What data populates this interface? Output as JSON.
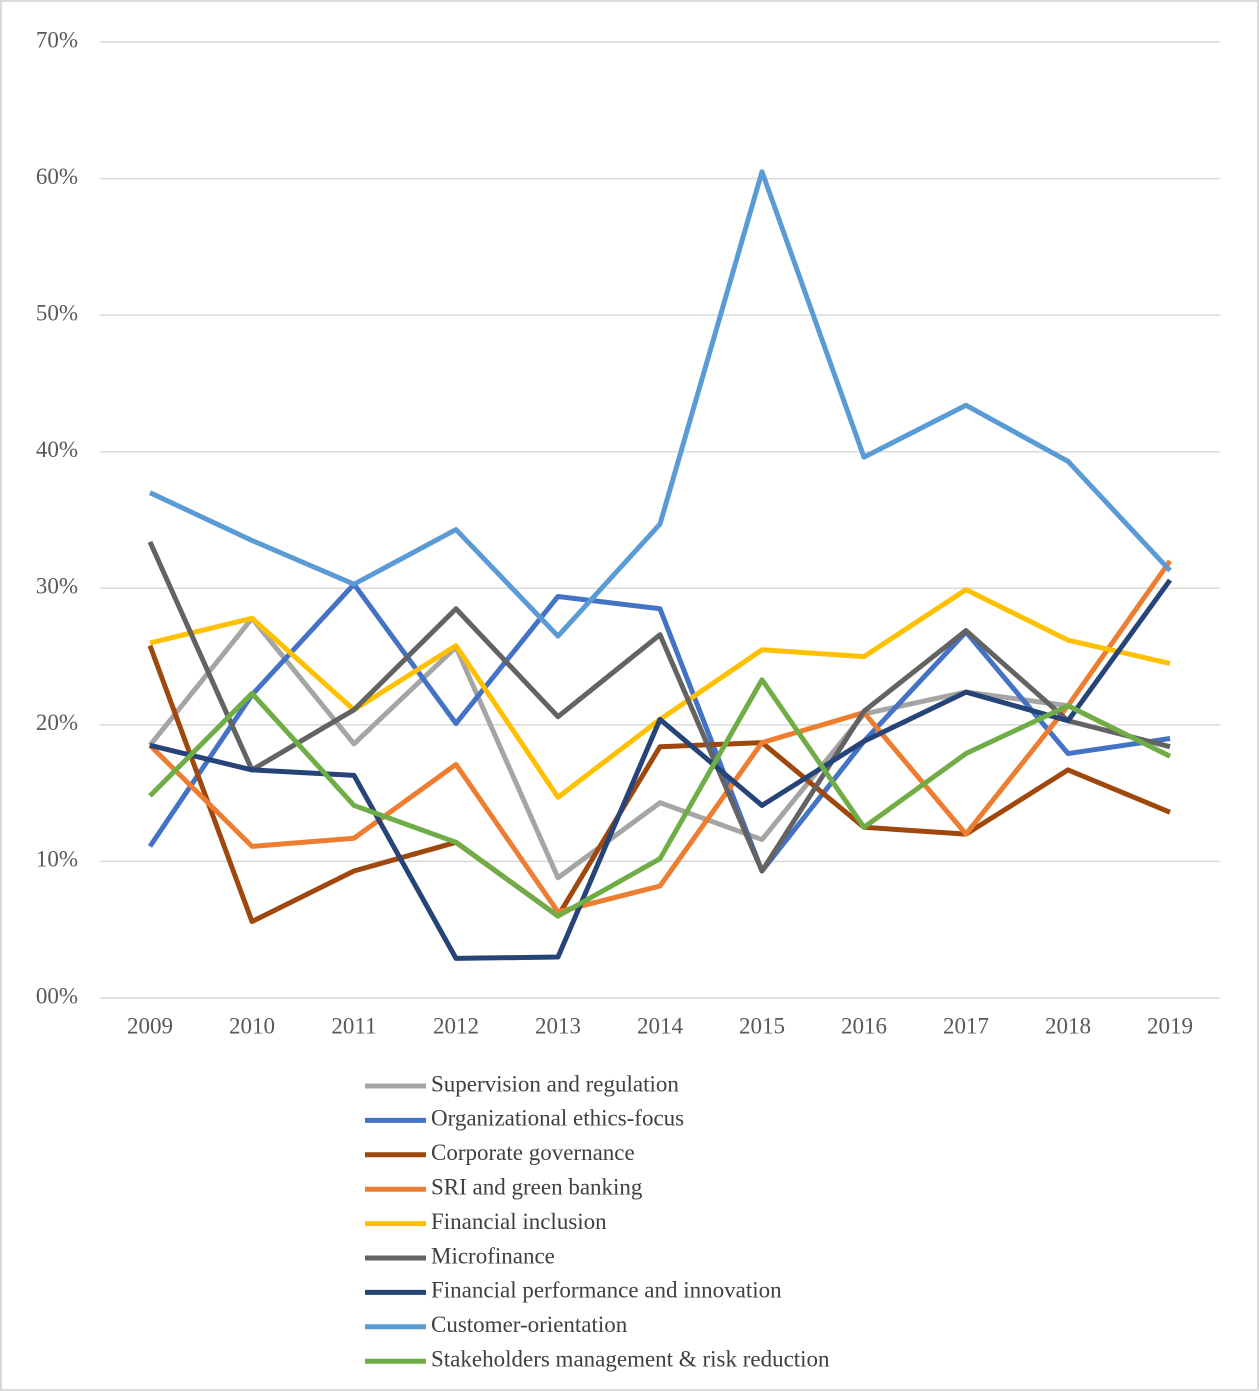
{
  "chart_data": {
    "type": "line",
    "categories": [
      "2009",
      "2010",
      "2011",
      "2012",
      "2013",
      "2014",
      "2015",
      "2016",
      "2017",
      "2018",
      "2019"
    ],
    "series": [
      {
        "name": "Supervision and regulation",
        "color": "#a5a5a5",
        "values": [
          18.5,
          27.8,
          18.6,
          25.7,
          8.8,
          14.3,
          11.6,
          20.8,
          22.4,
          21.4,
          17.7
        ]
      },
      {
        "name": "Organizational ethics-focus",
        "color": "#4472c4",
        "values": [
          11.1,
          22.2,
          30.3,
          20.1,
          29.4,
          28.5,
          9.3,
          18.8,
          26.8,
          17.9,
          19.0
        ]
      },
      {
        "name": "Corporate governance",
        "color": "#9e480e",
        "values": [
          25.8,
          5.6,
          9.3,
          11.4,
          6.0,
          18.4,
          18.7,
          12.5,
          12.0,
          16.7,
          13.6
        ]
      },
      {
        "name": "SRI and green banking",
        "color": "#ed7d31",
        "values": [
          18.5,
          11.1,
          11.7,
          17.1,
          6.3,
          8.2,
          18.7,
          20.9,
          12.0,
          21.4,
          32.0
        ]
      },
      {
        "name": "Financial inclusion",
        "color": "#ffc000",
        "values": [
          26.0,
          27.8,
          21.1,
          25.8,
          14.7,
          20.4,
          25.5,
          25.0,
          29.9,
          26.2,
          24.5
        ]
      },
      {
        "name": "Microfinance",
        "color": "#636363",
        "values": [
          33.4,
          16.7,
          21.1,
          28.5,
          20.6,
          26.6,
          9.3,
          21.0,
          26.9,
          20.3,
          18.4
        ]
      },
      {
        "name": "Financial performance and innovation",
        "color": "#264478",
        "values": [
          18.5,
          16.7,
          16.3,
          2.9,
          3.0,
          20.4,
          14.1,
          18.8,
          22.4,
          20.3,
          30.6
        ]
      },
      {
        "name": "Customer-orientation",
        "color": "#5b9bd5",
        "values": [
          37.0,
          33.5,
          30.3,
          34.3,
          26.5,
          34.7,
          60.5,
          39.6,
          43.4,
          39.3,
          31.3
        ]
      },
      {
        "name": "Stakeholders management & risk reduction",
        "color": "#70ad47",
        "values": [
          14.8,
          22.3,
          14.1,
          11.4,
          6.0,
          10.2,
          23.3,
          12.5,
          17.9,
          21.4,
          17.7
        ]
      }
    ],
    "ylim": [
      0,
      70
    ],
    "yticks": [
      {
        "value": 0,
        "label": "00%"
      },
      {
        "value": 10,
        "label": "10%"
      },
      {
        "value": 20,
        "label": "20%"
      },
      {
        "value": 30,
        "label": "30%"
      },
      {
        "value": 40,
        "label": "40%"
      },
      {
        "value": 50,
        "label": "50%"
      },
      {
        "value": 60,
        "label": "60%"
      },
      {
        "value": 70,
        "label": "70%"
      }
    ],
    "grid": true,
    "legend": "bottom"
  }
}
